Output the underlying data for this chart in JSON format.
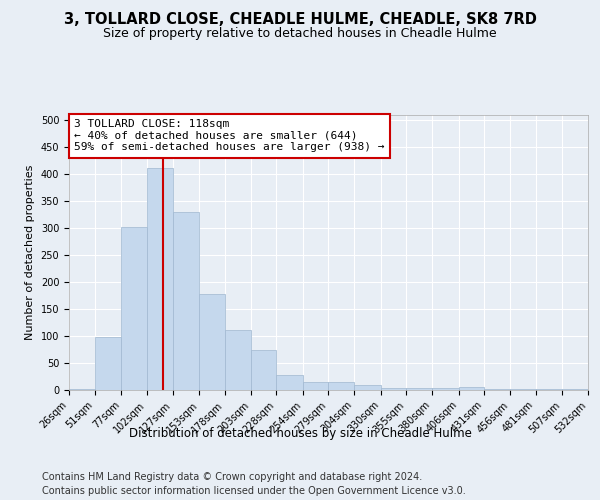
{
  "title": "3, TOLLARD CLOSE, CHEADLE HULME, CHEADLE, SK8 7RD",
  "subtitle": "Size of property relative to detached houses in Cheadle Hulme",
  "xlabel": "Distribution of detached houses by size in Cheadle Hulme",
  "ylabel": "Number of detached properties",
  "bar_color": "#c5d8ed",
  "bar_edge_color": "#a0b8d0",
  "annotation_line1": "3 TOLLARD CLOSE: 118sqm",
  "annotation_line2": "← 40% of detached houses are smaller (644)",
  "annotation_line3": "59% of semi-detached houses are larger (938) →",
  "annotation_box_color": "#ffffff",
  "annotation_box_edge_color": "#cc0000",
  "vline_color": "#cc0000",
  "vline_x": 118,
  "footer1": "Contains HM Land Registry data © Crown copyright and database right 2024.",
  "footer2": "Contains public sector information licensed under the Open Government Licence v3.0.",
  "bin_edges": [
    26,
    51,
    77,
    102,
    127,
    153,
    178,
    203,
    228,
    254,
    279,
    304,
    330,
    355,
    380,
    406,
    431,
    456,
    481,
    507,
    532
  ],
  "bin_heights": [
    2,
    98,
    302,
    412,
    330,
    178,
    112,
    75,
    28,
    15,
    14,
    10,
    4,
    3,
    4,
    5,
    1,
    2,
    1,
    2
  ],
  "ylim": [
    0,
    510
  ],
  "yticks": [
    0,
    50,
    100,
    150,
    200,
    250,
    300,
    350,
    400,
    450,
    500
  ],
  "background_color": "#e8eef5",
  "plot_bg_color": "#e8eef5",
  "grid_color": "#ffffff",
  "title_fontsize": 10.5,
  "subtitle_fontsize": 9,
  "tick_fontsize": 7,
  "xlabel_fontsize": 8.5,
  "ylabel_fontsize": 8,
  "footer_fontsize": 7,
  "annotation_fontsize": 8
}
